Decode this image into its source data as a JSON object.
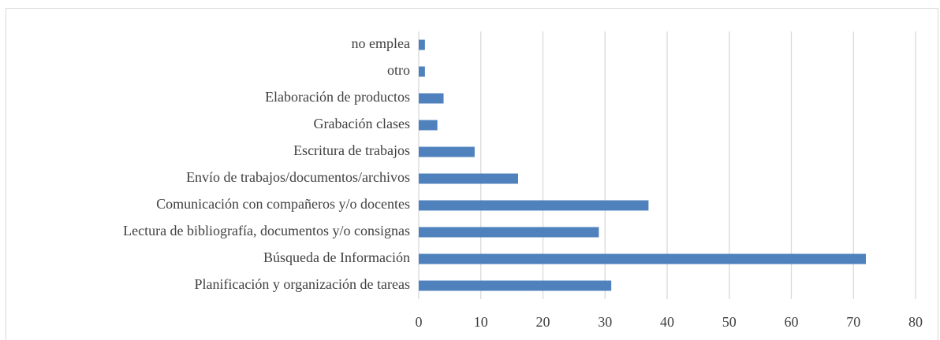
{
  "chart_data": {
    "type": "bar",
    "orientation": "horizontal",
    "categories": [
      "no emplea",
      "otro",
      "Elaboración de productos",
      "Grabación clases",
      "Escritura de trabajos",
      "Envío de trabajos/documentos/archivos",
      "Comunicación con compañeros y/o docentes",
      "Lectura de bibliografía, documentos y/o consignas",
      "Búsqueda de Información",
      "Planificación y organización de tareas"
    ],
    "values": [
      1,
      1,
      4,
      3,
      9,
      16,
      37,
      29,
      72,
      31
    ],
    "color": "#4f81bd",
    "xlim": [
      0,
      80
    ],
    "xticks": [
      0,
      10,
      20,
      30,
      40,
      50,
      60,
      70,
      80
    ],
    "grid": true
  }
}
